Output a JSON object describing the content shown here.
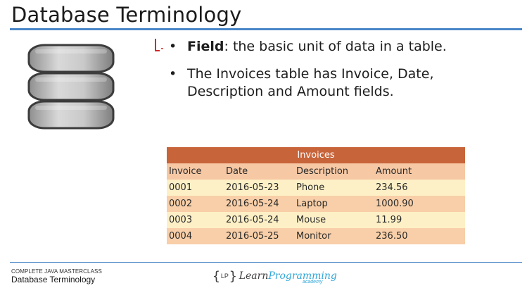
{
  "slide": {
    "title": "Database Terminology"
  },
  "icons": {
    "database": "database-icon",
    "annotation": "pen-mark-icon"
  },
  "bullets": [
    {
      "term": "Field",
      "text": ": the basic unit of data in a table."
    },
    {
      "term": "",
      "text": "The Invoices table has Invoice, Date, Description and Amount fields."
    }
  ],
  "table": {
    "caption": "Invoices",
    "headers": [
      "Invoice",
      "Date",
      "Description",
      "Amount"
    ],
    "rows": [
      [
        "0001",
        "2016-05-23",
        "Phone",
        "234.56"
      ],
      [
        "0002",
        "2016-05-24",
        "Laptop",
        "1000.90"
      ],
      [
        "0003",
        "2016-05-24",
        "Mouse",
        "11.99"
      ],
      [
        "0004",
        "2016-05-25",
        "Monitor",
        "236.50"
      ]
    ]
  },
  "footer": {
    "course": "COMPLETE JAVA MASTERCLASS",
    "subtitle": "Database Terminology",
    "logo_left": "{",
    "logo_mark": "LP",
    "logo_right": "}",
    "logo_word_1": "Learn",
    "logo_word_2": "Programming",
    "logo_sub": "academy"
  },
  "colors": {
    "title_rule": "#4a86c8",
    "table_caption": "#c8643a",
    "table_header": "#f6c8a4",
    "row_light": "#fdf0c6",
    "row_dark": "#f8cfa8",
    "annotation": "#d22a2a",
    "logo_accent": "#2fa6d8"
  }
}
